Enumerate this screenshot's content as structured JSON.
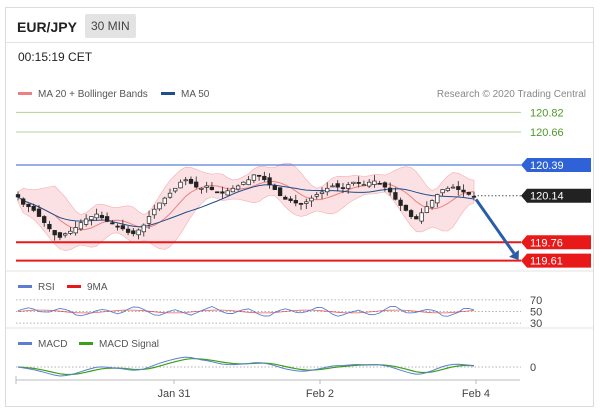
{
  "header": {
    "symbol": "EUR/JPY",
    "timeframe": "30 MIN"
  },
  "timestamp": "00:15:19 CET",
  "legend_main": [
    {
      "label": "MA 20 + Bollinger Bands",
      "color": "#f08080"
    },
    {
      "label": "MA 50",
      "color": "#1f4e8c"
    }
  ],
  "credit": "Research © 2020 Trading Central",
  "legend_rsi": [
    {
      "label": "RSI",
      "color": "#5a7fd0"
    },
    {
      "label": "9MA",
      "color": "#e81919"
    }
  ],
  "legend_macd": [
    {
      "label": "MACD",
      "color": "#5a7fd0"
    },
    {
      "label": "MACD Signal",
      "color": "#3aa017"
    }
  ],
  "chart_data": {
    "type": "candlestick",
    "x_tick_labels": [
      "Jan 31",
      "Feb 2",
      "Feb 4"
    ],
    "price_axis": {
      "ylim": [
        119.55,
        120.88
      ],
      "levels": [
        {
          "label": "120.82",
          "value": 120.82,
          "color": "#7ab648",
          "style": "line"
        },
        {
          "label": "120.66",
          "value": 120.66,
          "color": "#7ab648",
          "style": "line"
        },
        {
          "label": "120.39",
          "value": 120.39,
          "color": "#2f62d6",
          "style": "resistance"
        },
        {
          "label": "120.14",
          "value": 120.14,
          "color": "#222222",
          "style": "current"
        },
        {
          "label": "119.76",
          "value": 119.76,
          "color": "#e81919",
          "style": "support"
        },
        {
          "label": "119.61",
          "value": 119.61,
          "color": "#e81919",
          "style": "support"
        }
      ]
    },
    "forecast_arrow": {
      "from": 120.11,
      "to": 119.62,
      "direction": "down",
      "color": "#2a5da8"
    },
    "close_series": [
      120.13,
      120.07,
      120.05,
      120.02,
      119.97,
      119.92,
      119.87,
      119.82,
      119.8,
      119.83,
      119.85,
      119.88,
      119.92,
      119.95,
      119.97,
      119.99,
      119.96,
      119.93,
      119.91,
      119.89,
      119.87,
      119.84,
      119.83,
      119.86,
      119.9,
      119.97,
      120.03,
      120.08,
      120.12,
      120.16,
      120.2,
      120.25,
      120.27,
      120.24,
      120.21,
      120.2,
      120.22,
      120.19,
      120.17,
      120.16,
      120.18,
      120.2,
      120.22,
      120.25,
      120.27,
      120.31,
      120.3,
      120.27,
      120.23,
      120.19,
      120.14,
      120.11,
      120.1,
      120.08,
      120.07,
      120.09,
      120.12,
      120.15,
      120.17,
      120.2,
      120.22,
      120.21,
      120.2,
      120.23,
      120.25,
      120.24,
      120.23,
      120.25,
      120.26,
      120.24,
      120.21,
      120.17,
      120.11,
      120.06,
      120.02,
      119.97,
      119.95,
      120.0,
      120.05,
      120.1,
      120.15,
      120.19,
      120.2,
      120.21,
      120.19,
      120.17,
      120.15,
      120.13
    ],
    "rsi": {
      "levels": [
        70,
        50,
        30
      ],
      "ylim": [
        25,
        75
      ]
    },
    "macd": {
      "levels": [
        0
      ]
    }
  }
}
